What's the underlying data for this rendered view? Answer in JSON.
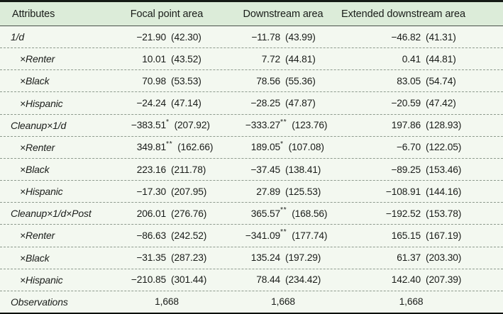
{
  "meta": {
    "colors": {
      "page_bg": "#f3f8f0",
      "header_bg": "#dcecd9",
      "top_rule": "#151a15",
      "bottom_rule": "#0c0f0c",
      "header_rule": "#49514a",
      "dotted_separator": "#8d9a8d",
      "text": "#1a1d1a"
    }
  },
  "table": {
    "header": {
      "attributes": "Attributes",
      "focal": "Focal point area",
      "downstream": "Downstream area",
      "extended": "Extended downstream area"
    },
    "rows": [
      {
        "label": "1/d",
        "indent": false,
        "cells": [
          {
            "coef": "−21.90",
            "stars": "",
            "se": "(42.30)"
          },
          {
            "coef": "−11.78",
            "stars": "",
            "se": "(43.99)"
          },
          {
            "coef": "−46.82",
            "stars": "",
            "se": "(41.31)"
          }
        ]
      },
      {
        "label": "×Renter",
        "indent": true,
        "cells": [
          {
            "coef": "10.01",
            "stars": "",
            "se": "(43.52)"
          },
          {
            "coef": "7.72",
            "stars": "",
            "se": "(44.81)"
          },
          {
            "coef": "0.41",
            "stars": "",
            "se": "(44.81)"
          }
        ]
      },
      {
        "label": "×Black",
        "indent": true,
        "cells": [
          {
            "coef": "70.98",
            "stars": "",
            "se": "(53.53)"
          },
          {
            "coef": "78.56",
            "stars": "",
            "se": "(55.36)"
          },
          {
            "coef": "83.05",
            "stars": "",
            "se": "(54.74)"
          }
        ]
      },
      {
        "label": "×Hispanic",
        "indent": true,
        "cells": [
          {
            "coef": "−24.24",
            "stars": "",
            "se": "(47.14)"
          },
          {
            "coef": "−28.25",
            "stars": "",
            "se": "(47.87)"
          },
          {
            "coef": "−20.59",
            "stars": "",
            "se": "(47.42)"
          }
        ]
      },
      {
        "label": "Cleanup×1/d",
        "indent": false,
        "cells": [
          {
            "coef": "−383.51",
            "stars": "*",
            "se": "(207.92)"
          },
          {
            "coef": "−333.27",
            "stars": "**",
            "se": "(123.76)"
          },
          {
            "coef": "197.86",
            "stars": "",
            "se": "(128.93)"
          }
        ]
      },
      {
        "label": "×Renter",
        "indent": true,
        "cells": [
          {
            "coef": "349.81",
            "stars": "**",
            "se": "(162.66)"
          },
          {
            "coef": "189.05",
            "stars": "*",
            "se": "(107.08)"
          },
          {
            "coef": "−6.70",
            "stars": "",
            "se": "(122.05)"
          }
        ]
      },
      {
        "label": "×Black",
        "indent": true,
        "cells": [
          {
            "coef": "223.16",
            "stars": "",
            "se": "(211.78)"
          },
          {
            "coef": "−37.45",
            "stars": "",
            "se": "(138.41)"
          },
          {
            "coef": "−89.25",
            "stars": "",
            "se": "(153.46)"
          }
        ]
      },
      {
        "label": "×Hispanic",
        "indent": true,
        "cells": [
          {
            "coef": "−17.30",
            "stars": "",
            "se": "(207.95)"
          },
          {
            "coef": "27.89",
            "stars": "",
            "se": "(125.53)"
          },
          {
            "coef": "−108.91",
            "stars": "",
            "se": "(144.16)"
          }
        ]
      },
      {
        "label": "Cleanup×1/d×Post",
        "indent": false,
        "cells": [
          {
            "coef": "206.01",
            "stars": "",
            "se": "(276.76)"
          },
          {
            "coef": "365.57",
            "stars": "**",
            "se": "(168.56)"
          },
          {
            "coef": "−192.52",
            "stars": "",
            "se": "(153.78)"
          }
        ]
      },
      {
        "label": "×Renter",
        "indent": true,
        "cells": [
          {
            "coef": "−86.63",
            "stars": "",
            "se": "(242.52)"
          },
          {
            "coef": "−341.09",
            "stars": "**",
            "se": "(177.74)"
          },
          {
            "coef": "165.15",
            "stars": "",
            "se": "(167.19)"
          }
        ]
      },
      {
        "label": "×Black",
        "indent": true,
        "cells": [
          {
            "coef": "−31.35",
            "stars": "",
            "se": "(287.23)"
          },
          {
            "coef": "135.24",
            "stars": "",
            "se": "(197.29)"
          },
          {
            "coef": "61.37",
            "stars": "",
            "se": "(203.30)"
          }
        ]
      },
      {
        "label": "×Hispanic",
        "indent": true,
        "cells": [
          {
            "coef": "−210.85",
            "stars": "",
            "se": "(301.44)"
          },
          {
            "coef": "78.44",
            "stars": "",
            "se": "(234.42)"
          },
          {
            "coef": "142.40",
            "stars": "",
            "se": "(207.39)"
          }
        ]
      },
      {
        "label": "Observations",
        "indent": false,
        "type": "observations",
        "values": [
          "1,668",
          "1,668",
          "1,668"
        ]
      }
    ]
  }
}
